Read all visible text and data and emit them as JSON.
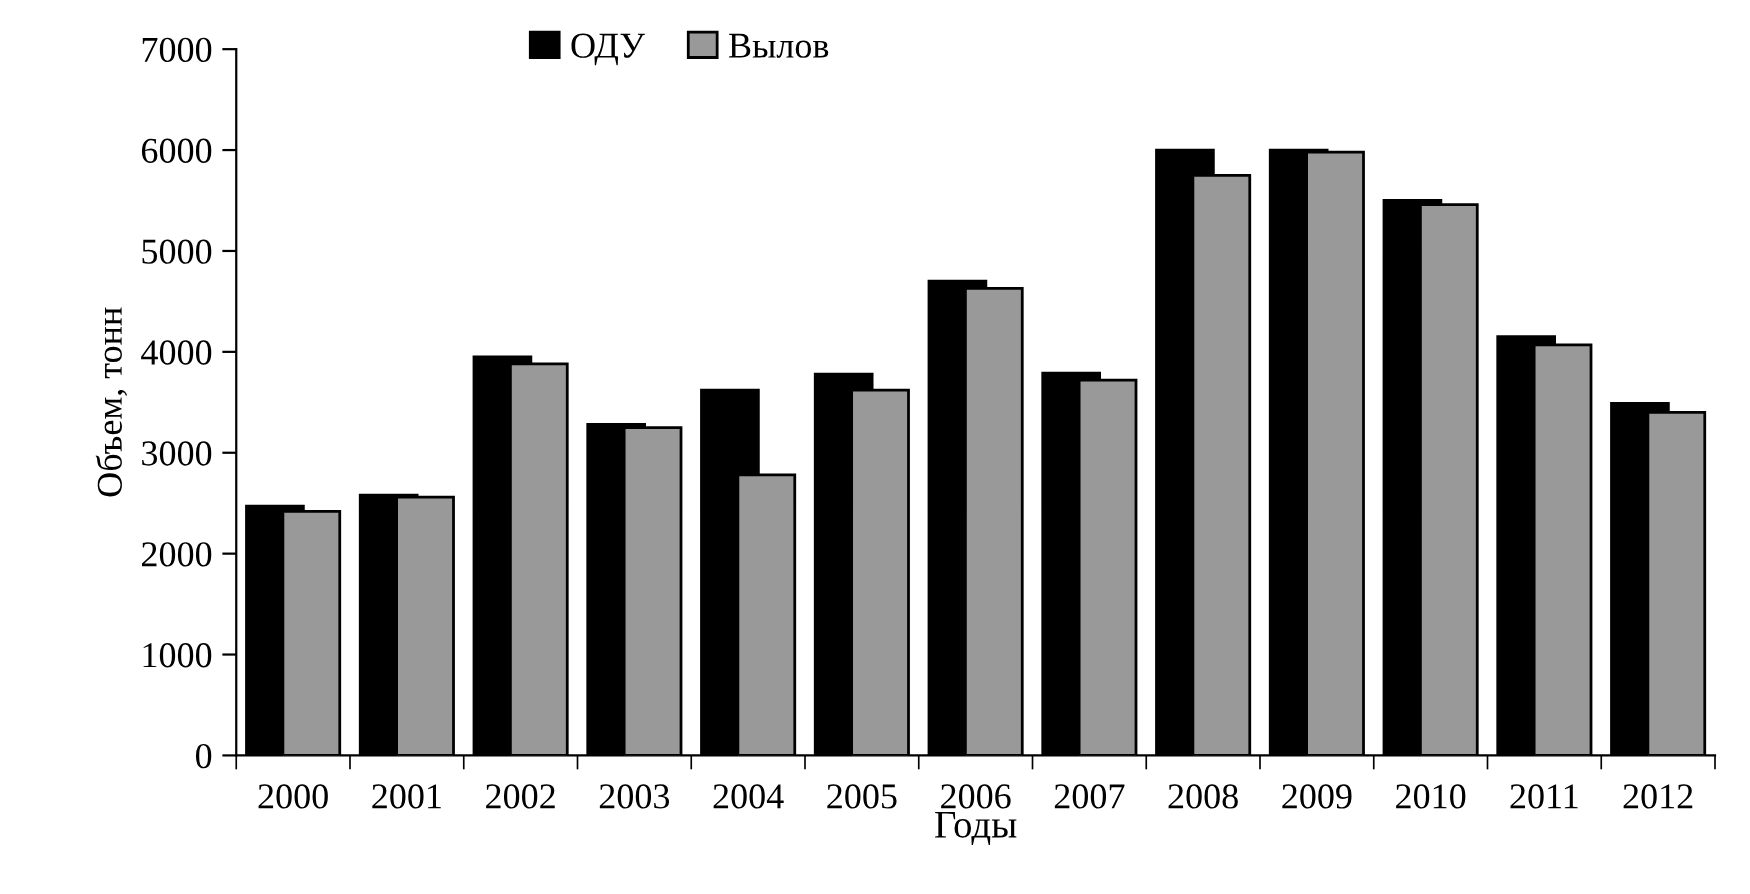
{
  "chart_data": {
    "type": "bar",
    "xlabel": "Годы",
    "ylabel": "Объем, тонн",
    "categories": [
      "2000",
      "2001",
      "2002",
      "2003",
      "2004",
      "2005",
      "2006",
      "2007",
      "2008",
      "2009",
      "2010",
      "2011",
      "2012"
    ],
    "series": [
      {
        "name": "ОДУ",
        "color": "#000000",
        "values": [
          2470,
          2580,
          3950,
          3280,
          3620,
          3780,
          4700,
          3790,
          6000,
          6000,
          5500,
          4150,
          3490
        ]
      },
      {
        "name": "Вылов",
        "color": "#999999",
        "values": [
          2420,
          2560,
          3880,
          3250,
          2780,
          3620,
          4630,
          3720,
          5750,
          5980,
          5460,
          4070,
          3400
        ]
      }
    ],
    "ylim": [
      0,
      7000
    ],
    "yticks": [
      0,
      1000,
      2000,
      3000,
      4000,
      5000,
      6000,
      7000
    ],
    "grid": false,
    "legend": "top"
  }
}
